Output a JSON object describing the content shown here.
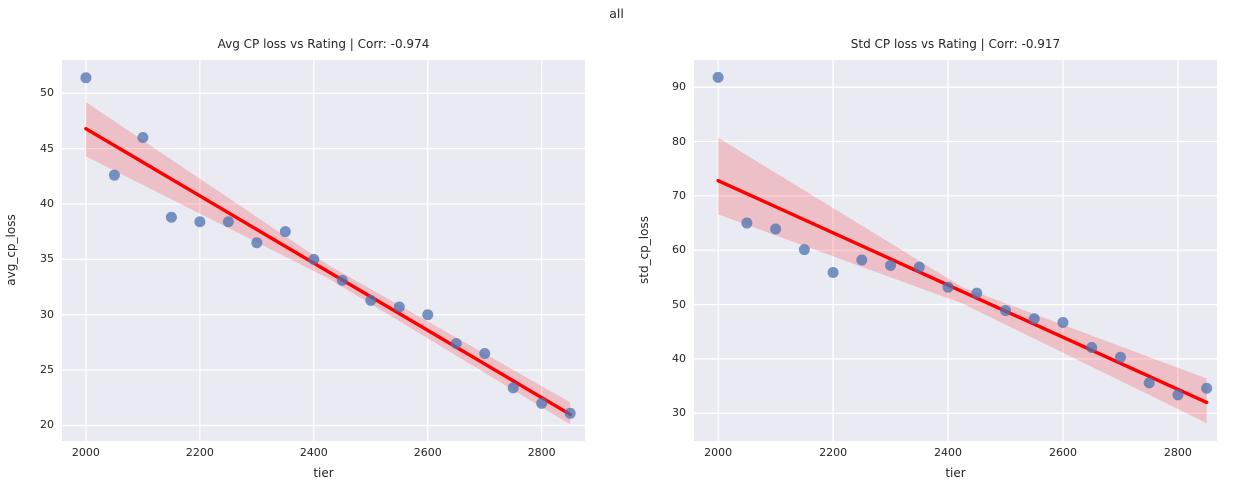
{
  "figure": {
    "suptitle": "all",
    "colors": {
      "axes_background": "#eaeaf2",
      "grid": "#ffffff",
      "points": "#4c72b0",
      "regression_line": "#ff0000",
      "ci_band": "#ff0000",
      "text": "#262626"
    }
  },
  "chart_data": [
    {
      "type": "scatter",
      "title": "Avg CP loss vs Rating | Corr: -0.974",
      "corr": -0.974,
      "xlabel": "tier",
      "ylabel": "avg_cp_loss",
      "xlim": [
        1958,
        2876
      ],
      "ylim": [
        18.6,
        53.0
      ],
      "xticks": [
        2000,
        2200,
        2400,
        2600,
        2800
      ],
      "yticks": [
        20,
        25,
        30,
        35,
        40,
        45,
        50
      ],
      "grid": true,
      "legend": false,
      "x": [
        2000,
        2050,
        2100,
        2150,
        2200,
        2250,
        2300,
        2350,
        2400,
        2450,
        2500,
        2550,
        2600,
        2650,
        2700,
        2750,
        2800,
        2850
      ],
      "y": [
        51.4,
        42.6,
        46.0,
        38.8,
        38.4,
        38.4,
        36.5,
        37.5,
        35.0,
        33.1,
        31.3,
        30.7,
        30.0,
        27.4,
        26.5,
        23.4,
        22.0,
        21.1
      ],
      "regression_line": {
        "x": [
          2000,
          2850
        ],
        "y": [
          46.8,
          21.0
        ]
      },
      "ci_band": {
        "x": [
          2000,
          2425,
          2850
        ],
        "top": [
          49.2,
          34.5,
          22.1
        ],
        "bottom": [
          44.3,
          33.3,
          20.1
        ]
      }
    },
    {
      "type": "scatter",
      "title": "Std CP loss vs Rating | Corr: -0.917",
      "corr": -0.917,
      "xlabel": "tier",
      "ylabel": "std_cp_loss",
      "xlim": [
        1958,
        2868
      ],
      "ylim": [
        24.9,
        95.0
      ],
      "xticks": [
        2000,
        2200,
        2400,
        2600,
        2800
      ],
      "yticks": [
        30,
        40,
        50,
        60,
        70,
        80,
        90
      ],
      "grid": true,
      "legend": false,
      "x": [
        2000,
        2050,
        2100,
        2150,
        2200,
        2250,
        2300,
        2350,
        2400,
        2450,
        2500,
        2550,
        2600,
        2650,
        2700,
        2750,
        2800,
        2850
      ],
      "y": [
        91.8,
        65.0,
        63.9,
        60.1,
        55.9,
        58.2,
        57.2,
        56.9,
        53.2,
        52.1,
        48.9,
        47.4,
        46.7,
        42.1,
        40.3,
        35.6,
        33.4,
        34.6
      ],
      "regression_line": {
        "x": [
          2000,
          2850
        ],
        "y": [
          72.8,
          32.0
        ]
      },
      "ci_band": {
        "x": [
          2000,
          2425,
          2850
        ],
        "top": [
          80.7,
          53.2,
          36.4
        ],
        "bottom": [
          66.6,
          50.2,
          28.2
        ]
      }
    }
  ]
}
